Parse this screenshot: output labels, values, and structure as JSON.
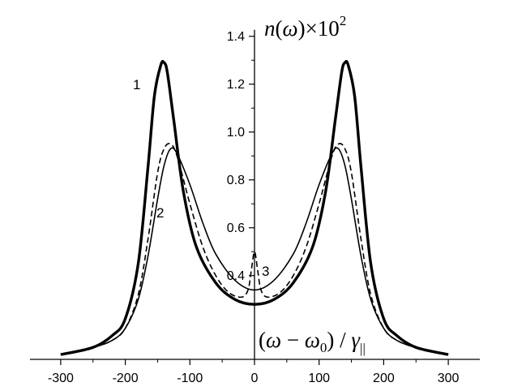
{
  "chart_data": {
    "type": "line",
    "x_ticks": [
      "-300",
      "-200",
      "-100",
      "0",
      "100",
      "200",
      "300"
    ],
    "y_ticks": [
      "0.4",
      "0.6",
      "0.8",
      "1.0",
      "1.2",
      "1.4"
    ],
    "xlim": [
      -300,
      300
    ],
    "ylim": [
      0.05,
      1.4
    ],
    "ylabel": {
      "n": "n",
      "paren_open": "(",
      "omega": "ω",
      "paren_close": ")",
      "times": "×10",
      "exp": "2"
    },
    "xlabel": {
      "paren_open": "(",
      "omega": "ω",
      "minus": " − ",
      "omega0": "ω",
      "zero": "0",
      "paren_close": ")",
      "slash": " / ",
      "gamma": "γ",
      "parallel": "||"
    },
    "series": [
      {
        "name": "1",
        "style": "thick",
        "color": "#000000",
        "x": [
          -300,
          -250,
          -220,
          -200,
          -180,
          -165,
          -155,
          -145,
          -140,
          -135,
          -125,
          -110,
          -90,
          -60,
          -30,
          0,
          30,
          60,
          90,
          110,
          125,
          135,
          140,
          145,
          155,
          165,
          180,
          200,
          220,
          250,
          300
        ],
        "y": [
          0.07,
          0.1,
          0.15,
          0.22,
          0.45,
          0.85,
          1.15,
          1.28,
          1.29,
          1.25,
          1.05,
          0.75,
          0.52,
          0.37,
          0.3,
          0.28,
          0.3,
          0.37,
          0.52,
          0.75,
          1.05,
          1.25,
          1.29,
          1.28,
          1.15,
          0.85,
          0.45,
          0.22,
          0.15,
          0.1,
          0.07
        ]
      },
      {
        "name": "2",
        "style": "thin",
        "color": "#000000",
        "x": [
          -300,
          -250,
          -220,
          -200,
          -180,
          -165,
          -150,
          -140,
          -130,
          -120,
          -100,
          -80,
          -60,
          -30,
          0,
          30,
          60,
          80,
          100,
          120,
          130,
          140,
          150,
          165,
          180,
          200,
          220,
          250,
          300
        ],
        "y": [
          0.07,
          0.1,
          0.13,
          0.18,
          0.3,
          0.48,
          0.72,
          0.86,
          0.93,
          0.91,
          0.78,
          0.62,
          0.49,
          0.38,
          0.34,
          0.38,
          0.49,
          0.62,
          0.78,
          0.91,
          0.93,
          0.86,
          0.72,
          0.48,
          0.3,
          0.18,
          0.13,
          0.1,
          0.07
        ]
      },
      {
        "name": "3",
        "style": "dashed",
        "color": "#000000",
        "x": [
          -300,
          -250,
          -220,
          -200,
          -180,
          -165,
          -150,
          -140,
          -130,
          -120,
          -100,
          -80,
          -60,
          -40,
          -20,
          -10,
          -5,
          0,
          5,
          10,
          20,
          40,
          60,
          80,
          100,
          120,
          130,
          140,
          150,
          165,
          180,
          200,
          220,
          250,
          300
        ],
        "y": [
          0.07,
          0.1,
          0.13,
          0.18,
          0.32,
          0.55,
          0.83,
          0.93,
          0.95,
          0.9,
          0.7,
          0.52,
          0.4,
          0.33,
          0.31,
          0.34,
          0.42,
          0.5,
          0.42,
          0.34,
          0.31,
          0.33,
          0.4,
          0.52,
          0.7,
          0.9,
          0.95,
          0.93,
          0.83,
          0.55,
          0.32,
          0.18,
          0.13,
          0.1,
          0.07
        ]
      }
    ],
    "curve_labels": [
      "1",
      "2",
      "3"
    ]
  }
}
